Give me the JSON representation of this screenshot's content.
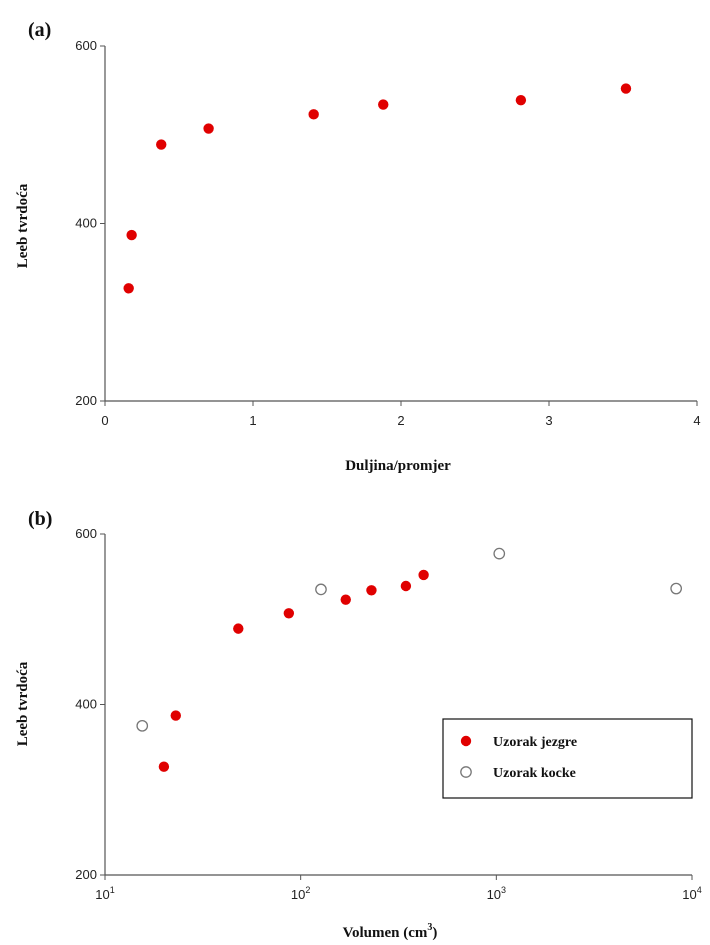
{
  "chart_data": [
    {
      "type": "scatter",
      "panel_label": "(a)",
      "xlabel": "Duljina/promjer",
      "ylabel": "Leeb tvrdoća",
      "xlim": [
        0,
        4
      ],
      "ylim": [
        200,
        600
      ],
      "x_ticks": [
        0,
        1,
        2,
        3,
        4
      ],
      "y_ticks": [
        200,
        400,
        600
      ],
      "x_scale": "linear",
      "grid": false,
      "series": [
        {
          "color": "#e00000",
          "marker": "filled-circle",
          "points": [
            {
              "x": 0.16,
              "y": 327
            },
            {
              "x": 0.18,
              "y": 387
            },
            {
              "x": 0.38,
              "y": 489
            },
            {
              "x": 0.7,
              "y": 507
            },
            {
              "x": 1.41,
              "y": 523
            },
            {
              "x": 1.88,
              "y": 534
            },
            {
              "x": 2.81,
              "y": 539
            },
            {
              "x": 3.52,
              "y": 552
            }
          ]
        }
      ]
    },
    {
      "type": "scatter",
      "panel_label": "(b)",
      "xlabel": "Volumen (cm",
      "xlabel_sup": "3",
      "xlabel_end": ")",
      "ylabel": "Leeb tvrdoća",
      "xlim": [
        10,
        10000
      ],
      "ylim": [
        200,
        600
      ],
      "x_scale": "log",
      "x_ticks": [
        {
          "value": 10,
          "base": "10",
          "exp": "1"
        },
        {
          "value": 100,
          "base": "10",
          "exp": "2"
        },
        {
          "value": 1000,
          "base": "10",
          "exp": "3"
        },
        {
          "value": 10000,
          "base": "10",
          "exp": "4"
        }
      ],
      "y_ticks": [
        200,
        400,
        600
      ],
      "grid": false,
      "legend_position": "bottom-right",
      "series": [
        {
          "name": "Uzorak jezgre",
          "color": "#e00000",
          "marker": "filled-circle",
          "points": [
            {
              "x": 20,
              "y": 327
            },
            {
              "x": 23,
              "y": 387
            },
            {
              "x": 48,
              "y": 489
            },
            {
              "x": 87,
              "y": 507
            },
            {
              "x": 170,
              "y": 523
            },
            {
              "x": 230,
              "y": 534
            },
            {
              "x": 345,
              "y": 539
            },
            {
              "x": 425,
              "y": 552
            }
          ]
        },
        {
          "name": "Uzorak kocke",
          "color": "#777777",
          "marker": "open-circle",
          "points": [
            {
              "x": 15.5,
              "y": 375
            },
            {
              "x": 127,
              "y": 535
            },
            {
              "x": 1035,
              "y": 577
            },
            {
              "x": 8300,
              "y": 536
            }
          ]
        }
      ]
    }
  ]
}
